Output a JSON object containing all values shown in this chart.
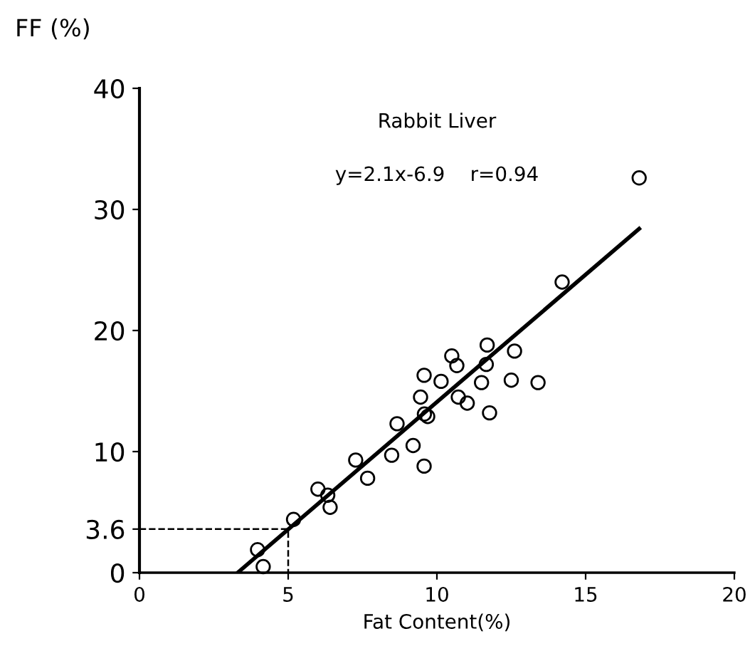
{
  "chart_data": {
    "type": "scatter",
    "xlabel": "Fat Content(%)",
    "ylabel": "FF (%)",
    "annotations": [
      "Rabbit Liver",
      "y=2.1x-6.9    r=0.94"
    ],
    "series": [
      {
        "color": "#000000",
        "marker": "circle",
        "x": [
          3.97,
          4.16,
          5.18,
          6.0,
          6.33,
          6.41,
          7.27,
          7.67,
          8.48,
          8.66,
          9.2,
          9.57,
          9.45,
          9.58,
          9.69,
          9.57,
          10.14,
          10.5,
          10.67,
          10.72,
          11.02,
          11.5,
          11.66,
          11.69,
          11.77,
          12.5,
          12.61,
          13.4,
          14.21,
          16.8
        ],
        "values": [
          1.9,
          0.5,
          4.4,
          6.9,
          6.4,
          5.4,
          9.3,
          7.8,
          9.7,
          12.3,
          10.5,
          8.8,
          14.5,
          13.1,
          12.9,
          16.3,
          15.8,
          17.9,
          17.1,
          14.5,
          14.0,
          15.7,
          17.2,
          18.8,
          13.2,
          15.9,
          18.3,
          15.7,
          24.0,
          32.6
        ]
      },
      {
        "type": "line",
        "color": "#000000",
        "line_style": "solid",
        "x": [
          3.3,
          16.8
        ],
        "values": [
          0,
          28.4
        ]
      },
      {
        "type": "line",
        "color": "#000000",
        "line_style": "dashed",
        "x": [
          0,
          5,
          5
        ],
        "values": [
          3.6,
          3.6,
          0
        ]
      }
    ],
    "xlim": [
      0,
      20
    ],
    "ylim": [
      0,
      40
    ],
    "xticks": [
      0,
      5,
      10,
      15,
      20
    ],
    "yticks": [
      0,
      3.6,
      10,
      20,
      30,
      40
    ],
    "grid": false,
    "legend": false
  }
}
